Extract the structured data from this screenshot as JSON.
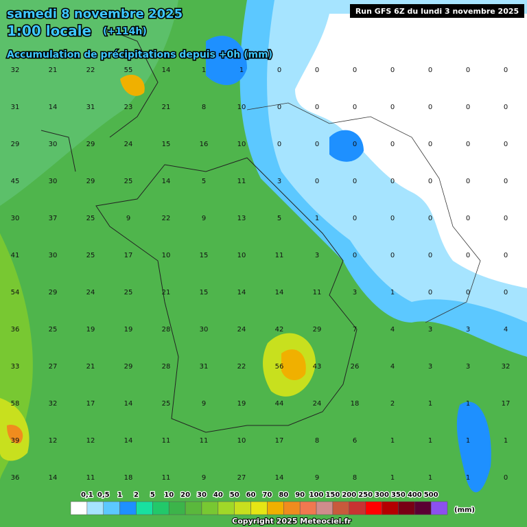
{
  "header": {
    "date": "samedi 8 novembre 2025",
    "time": "1:00 locale",
    "offset": "(+114h)",
    "subtitle": "Accumulation de précipitations depuis +0h (mm)",
    "run": "Run GFS 6Z du lundi 3 novembre 2025"
  },
  "map": {
    "rows": [
      [
        32,
        21,
        22,
        55,
        14,
        1,
        1,
        0,
        0,
        0,
        0,
        0,
        0,
        0
      ],
      [
        31,
        14,
        31,
        23,
        21,
        8,
        10,
        0,
        0,
        0,
        0,
        0,
        0,
        0
      ],
      [
        29,
        30,
        29,
        24,
        15,
        16,
        10,
        0,
        0,
        0,
        0,
        0,
        0,
        0
      ],
      [
        45,
        30,
        29,
        25,
        14,
        5,
        11,
        3,
        0,
        0,
        0,
        0,
        0,
        0
      ],
      [
        30,
        37,
        25,
        9,
        22,
        9,
        13,
        5,
        1,
        0,
        0,
        0,
        0,
        0
      ],
      [
        41,
        30,
        25,
        17,
        10,
        15,
        10,
        11,
        3,
        0,
        0,
        0,
        0,
        0
      ],
      [
        54,
        29,
        24,
        25,
        21,
        15,
        14,
        14,
        11,
        3,
        1,
        0,
        0,
        0
      ],
      [
        36,
        25,
        19,
        19,
        28,
        30,
        24,
        42,
        29,
        7,
        4,
        3,
        3,
        4
      ],
      [
        33,
        27,
        21,
        29,
        28,
        31,
        22,
        56,
        43,
        26,
        4,
        3,
        3,
        32
      ],
      [
        58,
        32,
        17,
        14,
        25,
        9,
        19,
        44,
        24,
        18,
        2,
        1,
        1,
        17
      ],
      [
        39,
        12,
        12,
        14,
        11,
        11,
        10,
        17,
        8,
        6,
        1,
        1,
        1,
        1
      ],
      [
        36,
        14,
        11,
        18,
        11,
        9,
        27,
        14,
        9,
        8,
        1,
        1,
        1,
        0
      ]
    ]
  },
  "legend": {
    "colors": [
      "#ffffff",
      "#a6e4ff",
      "#5cc8ff",
      "#1e90ff",
      "#18e0a0",
      "#22c86a",
      "#3cb44a",
      "#5ab83c",
      "#78c832",
      "#a0d828",
      "#c8e01e",
      "#e6e614",
      "#f0b000",
      "#f08c1e",
      "#f07850",
      "#d08c8c",
      "#c85a3c",
      "#c83232",
      "#ff0000",
      "#b40000",
      "#780014",
      "#5a0032",
      "#8c50f0"
    ],
    "labels": [
      "0,1",
      "0,5",
      "1",
      "2",
      "5",
      "10",
      "20",
      "30",
      "40",
      "50",
      "60",
      "70",
      "80",
      "90",
      "100",
      "150",
      "200",
      "250",
      "300",
      "350",
      "400",
      "500"
    ],
    "unit": "(mm)"
  },
  "copyright": "Copyright 2025 Meteociel.fr"
}
